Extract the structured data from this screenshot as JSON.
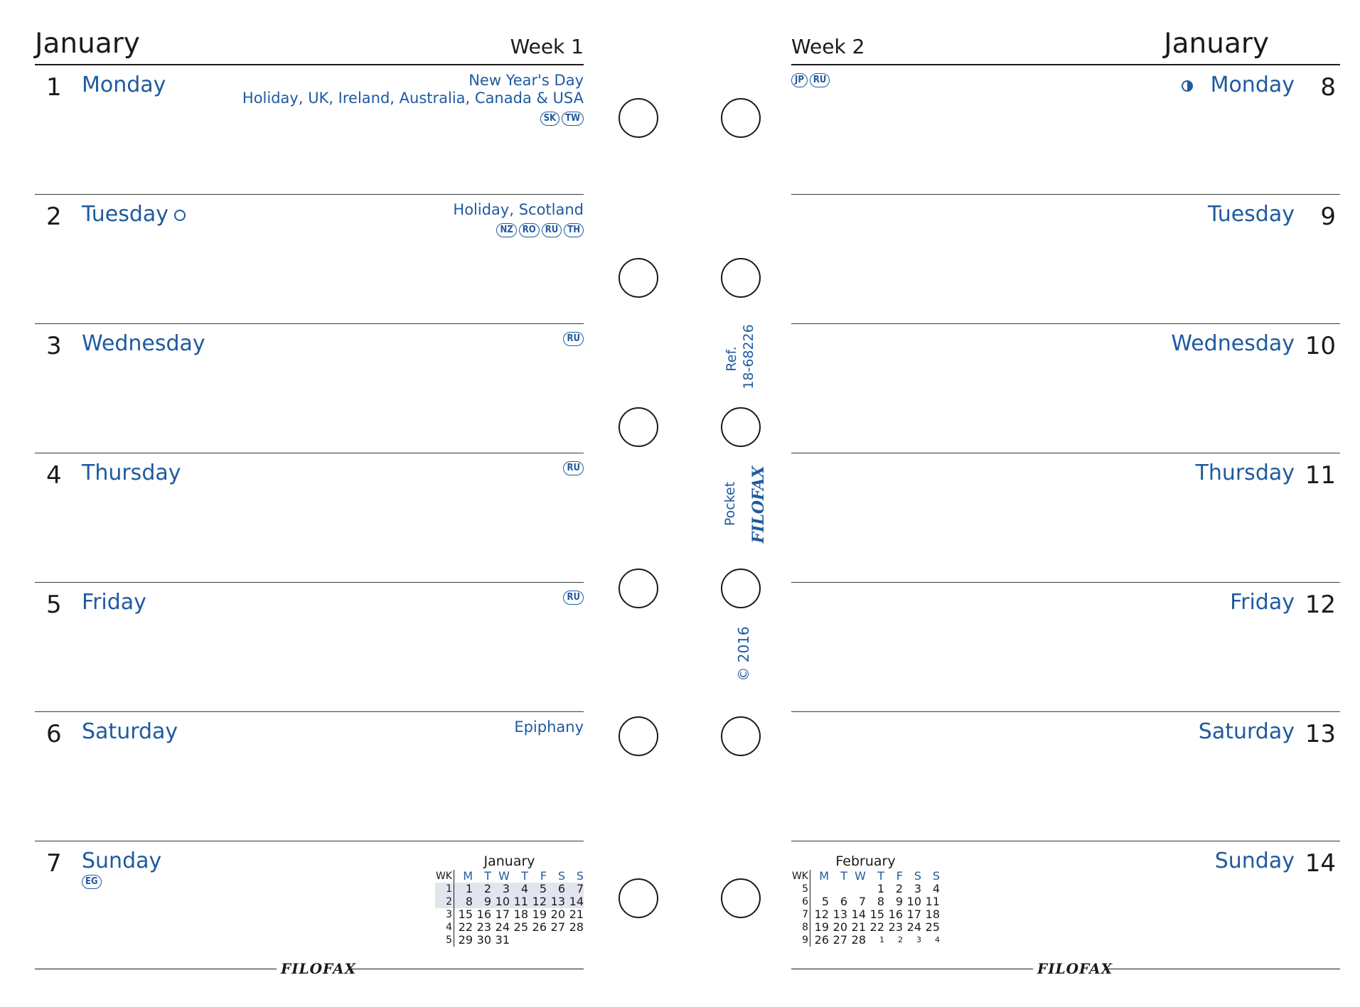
{
  "left_page": {
    "month": "January",
    "week": "Week 1",
    "days": [
      {
        "num": "1",
        "name": "Monday",
        "holiday_lines": [
          "New Year's Day",
          "Holiday, UK, Ireland, Australia, Canada & USA"
        ],
        "badges": [
          "SK",
          "TW"
        ]
      },
      {
        "num": "2",
        "name": "Tuesday",
        "moon": "full-moon-icon",
        "holiday_lines": [
          "Holiday, Scotland"
        ],
        "badges": [
          "NZ",
          "RO",
          "RU",
          "TH"
        ]
      },
      {
        "num": "3",
        "name": "Wednesday",
        "holiday_lines": [],
        "badges": [
          "RU"
        ]
      },
      {
        "num": "4",
        "name": "Thursday",
        "holiday_lines": [],
        "badges": [
          "RU"
        ]
      },
      {
        "num": "5",
        "name": "Friday",
        "holiday_lines": [],
        "badges": [
          "RU"
        ]
      },
      {
        "num": "6",
        "name": "Saturday",
        "holiday_lines": [
          "Epiphany"
        ],
        "badges": []
      },
      {
        "num": "7",
        "name": "Sunday",
        "holiday_lines": [],
        "badges": [
          "EG"
        ]
      }
    ],
    "mini_calendar": {
      "caption": "January",
      "headers": [
        "WK",
        "M",
        "T",
        "W",
        "T",
        "F",
        "S",
        "S"
      ],
      "rows": [
        [
          "1",
          "1",
          "2",
          "3",
          "4",
          "5",
          "6",
          "7"
        ],
        [
          "2",
          "8",
          "9",
          "10",
          "11",
          "12",
          "13",
          "14"
        ],
        [
          "3",
          "15",
          "16",
          "17",
          "18",
          "19",
          "20",
          "21"
        ],
        [
          "4",
          "22",
          "23",
          "24",
          "25",
          "26",
          "27",
          "28"
        ],
        [
          "5",
          "29",
          "30",
          "31",
          "",
          "",
          "",
          ""
        ]
      ]
    },
    "footer_logo": "FILOFAX"
  },
  "right_page": {
    "month": "January",
    "week": "Week 2",
    "days": [
      {
        "num": "8",
        "name": "Monday",
        "moon": "half-moon-icon",
        "badges": [
          "JP",
          "RU"
        ]
      },
      {
        "num": "9",
        "name": "Tuesday",
        "badges": []
      },
      {
        "num": "10",
        "name": "Wednesday",
        "badges": []
      },
      {
        "num": "11",
        "name": "Thursday",
        "badges": []
      },
      {
        "num": "12",
        "name": "Friday",
        "badges": []
      },
      {
        "num": "13",
        "name": "Saturday",
        "badges": []
      },
      {
        "num": "14",
        "name": "Sunday",
        "badges": []
      }
    ],
    "mini_calendar": {
      "caption": "February",
      "headers": [
        "WK",
        "M",
        "T",
        "W",
        "T",
        "F",
        "S",
        "S"
      ],
      "rows": [
        [
          "5",
          "",
          "",
          "",
          "1",
          "2",
          "3",
          "4"
        ],
        [
          "6",
          "5",
          "6",
          "7",
          "8",
          "9",
          "10",
          "11"
        ],
        [
          "7",
          "12",
          "13",
          "14",
          "15",
          "16",
          "17",
          "18"
        ],
        [
          "8",
          "19",
          "20",
          "21",
          "22",
          "23",
          "24",
          "25"
        ],
        [
          "9",
          "26",
          "27",
          "28",
          "1",
          "2",
          "3",
          "4"
        ]
      ]
    },
    "footer_logo": "FILOFAX"
  },
  "spine": {
    "ref_label": "Ref.",
    "ref_number": "18-68226",
    "size_label": "Pocket",
    "brand": "FILOFAX",
    "copyright": "© 2016"
  },
  "colors": {
    "accent": "#1f5aa0",
    "text": "#1a1a1a",
    "highlight": "#e3e5ee"
  }
}
